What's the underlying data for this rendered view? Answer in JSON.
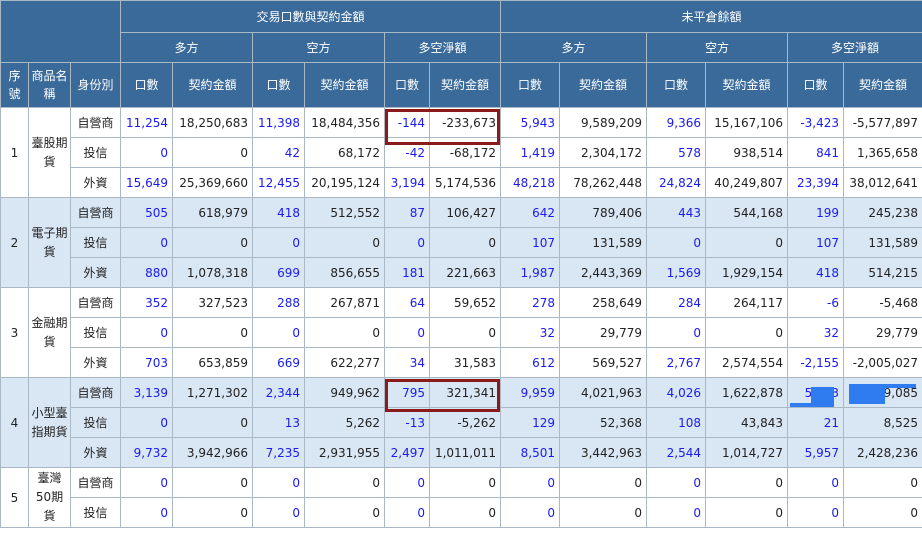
{
  "header": {
    "group_trade": "交易口數與契約金額",
    "group_oi": "未平倉餘額",
    "long": "多方",
    "short": "空方",
    "net": "多空淨額",
    "seq_label": "序號",
    "prod_label": "商品名稱",
    "role_label": "身份別",
    "contracts": "口數",
    "amount": "契約金額"
  },
  "products": [
    {
      "seq": "1",
      "name": "臺股期貨",
      "rows": [
        {
          "role": "自營商",
          "v": [
            "11,254",
            "18,250,683",
            "11,398",
            "18,484,356",
            "-144",
            "-233,673",
            "5,943",
            "9,589,209",
            "9,366",
            "15,167,106",
            "-3,423",
            "-5,577,897"
          ]
        },
        {
          "role": "投信",
          "v": [
            "0",
            "0",
            "42",
            "68,172",
            "-42",
            "-68,172",
            "1,419",
            "2,304,172",
            "578",
            "938,514",
            "841",
            "1,365,658"
          ]
        },
        {
          "role": "外資",
          "v": [
            "15,649",
            "25,369,660",
            "12,455",
            "20,195,124",
            "3,194",
            "5,174,536",
            "48,218",
            "78,262,448",
            "24,824",
            "40,249,807",
            "23,394",
            "38,012,641"
          ]
        }
      ]
    },
    {
      "seq": "2",
      "name": "電子期貨",
      "rows": [
        {
          "role": "自營商",
          "v": [
            "505",
            "618,979",
            "418",
            "512,552",
            "87",
            "106,427",
            "642",
            "789,406",
            "443",
            "544,168",
            "199",
            "245,238"
          ]
        },
        {
          "role": "投信",
          "v": [
            "0",
            "0",
            "0",
            "0",
            "0",
            "0",
            "107",
            "131,589",
            "0",
            "0",
            "107",
            "131,589"
          ]
        },
        {
          "role": "外資",
          "v": [
            "880",
            "1,078,318",
            "699",
            "856,655",
            "181",
            "221,663",
            "1,987",
            "2,443,369",
            "1,569",
            "1,929,154",
            "418",
            "514,215"
          ]
        }
      ]
    },
    {
      "seq": "3",
      "name": "金融期貨",
      "rows": [
        {
          "role": "自營商",
          "v": [
            "352",
            "327,523",
            "288",
            "267,871",
            "64",
            "59,652",
            "278",
            "258,649",
            "284",
            "264,117",
            "-6",
            "-5,468"
          ]
        },
        {
          "role": "投信",
          "v": [
            "0",
            "0",
            "0",
            "0",
            "0",
            "0",
            "32",
            "29,779",
            "0",
            "0",
            "32",
            "29,779"
          ]
        },
        {
          "role": "外資",
          "v": [
            "703",
            "653,859",
            "669",
            "622,277",
            "34",
            "31,583",
            "612",
            "569,527",
            "2,767",
            "2,574,554",
            "-2,155",
            "-2,005,027"
          ]
        }
      ]
    },
    {
      "seq": "4",
      "name": "小型臺指期貨",
      "rows": [
        {
          "role": "自營商",
          "v": [
            "3,139",
            "1,271,302",
            "2,344",
            "949,962",
            "795",
            "321,341",
            "9,959",
            "4,021,963",
            "4,026",
            "1,622,878",
            "5,933",
            "2,399,085"
          ]
        },
        {
          "role": "投信",
          "v": [
            "0",
            "0",
            "13",
            "5,262",
            "-13",
            "-5,262",
            "129",
            "52,368",
            "108",
            "43,843",
            "21",
            "8,525"
          ]
        },
        {
          "role": "外資",
          "v": [
            "9,732",
            "3,942,966",
            "7,235",
            "2,931,955",
            "2,497",
            "1,011,011",
            "8,501",
            "3,442,963",
            "2,544",
            "1,014,727",
            "5,957",
            "2,428,236"
          ]
        }
      ]
    },
    {
      "seq": "5",
      "name": "臺灣50期貨",
      "rows": [
        {
          "role": "自營商",
          "v": [
            "0",
            "0",
            "0",
            "0",
            "0",
            "0",
            "0",
            "0",
            "0",
            "0",
            "0",
            "0"
          ]
        },
        {
          "role": "投信",
          "v": [
            "0",
            "0",
            "0",
            "0",
            "0",
            "0",
            "0",
            "0",
            "0",
            "0",
            "0",
            "0"
          ]
        }
      ]
    }
  ],
  "colors": {
    "header_bg": "#3a6a9a",
    "row_blue": "#d9e6f4",
    "link_blue": "#1a1aee",
    "highlight_border": "#8b1a1a",
    "selection_blue": "#2f7cf0"
  }
}
